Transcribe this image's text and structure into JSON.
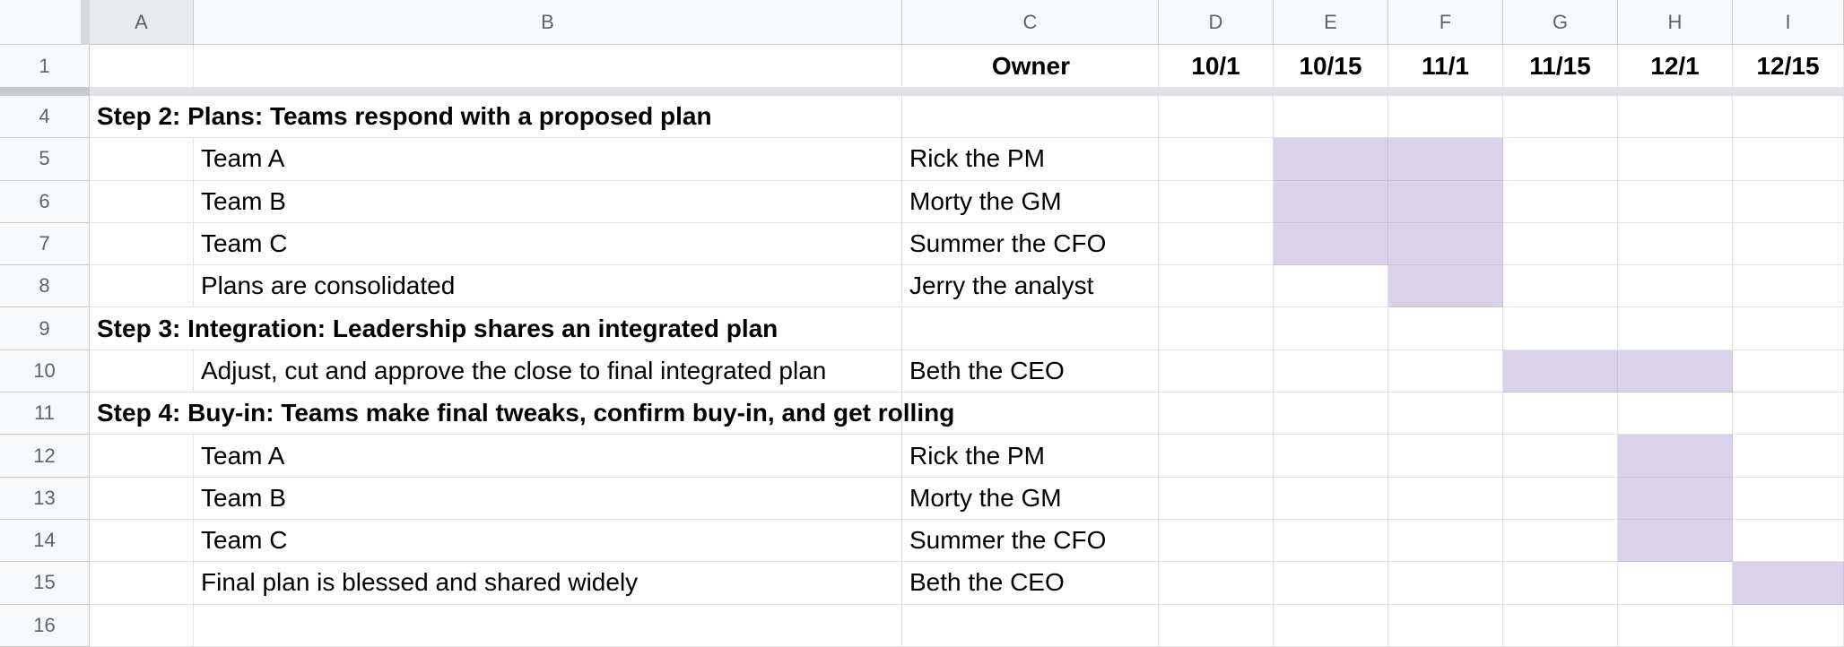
{
  "columns": [
    "A",
    "B",
    "C",
    "D",
    "E",
    "F",
    "G",
    "H",
    "I"
  ],
  "header_row": {
    "number": "1",
    "cells": [
      "",
      "",
      "Owner",
      "10/1",
      "10/15",
      "11/1",
      "11/15",
      "12/1",
      "12/15"
    ]
  },
  "rows": [
    {
      "number": "4",
      "cells": [
        "Step 2: Plans: Teams respond with a proposed plan",
        "",
        "",
        "",
        "",
        "",
        "",
        "",
        ""
      ],
      "heading": true,
      "filled": []
    },
    {
      "number": "5",
      "cells": [
        "",
        "Team A",
        "Rick the PM",
        "",
        "",
        "",
        "",
        "",
        ""
      ],
      "heading": false,
      "filled": [
        "E",
        "F"
      ]
    },
    {
      "number": "6",
      "cells": [
        "",
        "Team B",
        "Morty the GM",
        "",
        "",
        "",
        "",
        "",
        ""
      ],
      "heading": false,
      "filled": [
        "E",
        "F"
      ]
    },
    {
      "number": "7",
      "cells": [
        "",
        "Team C",
        "Summer the CFO",
        "",
        "",
        "",
        "",
        "",
        ""
      ],
      "heading": false,
      "filled": [
        "E",
        "F"
      ]
    },
    {
      "number": "8",
      "cells": [
        "",
        "Plans are consolidated",
        "Jerry the analyst",
        "",
        "",
        "",
        "",
        "",
        ""
      ],
      "heading": false,
      "filled": [
        "F"
      ]
    },
    {
      "number": "9",
      "cells": [
        "Step 3: Integration: Leadership shares an integrated plan",
        "",
        "",
        "",
        "",
        "",
        "",
        "",
        ""
      ],
      "heading": true,
      "filled": []
    },
    {
      "number": "10",
      "cells": [
        "",
        "Adjust, cut and approve the close to final integrated plan",
        "Beth the CEO",
        "",
        "",
        "",
        "",
        "",
        ""
      ],
      "heading": false,
      "filled": [
        "G",
        "H"
      ]
    },
    {
      "number": "11",
      "cells": [
        "Step 4: Buy-in: Teams make final tweaks, confirm buy-in, and get rolling",
        "",
        "",
        "",
        "",
        "",
        "",
        "",
        ""
      ],
      "heading": true,
      "filled": []
    },
    {
      "number": "12",
      "cells": [
        "",
        "Team A",
        "Rick the PM",
        "",
        "",
        "",
        "",
        "",
        ""
      ],
      "heading": false,
      "filled": [
        "H"
      ]
    },
    {
      "number": "13",
      "cells": [
        "",
        "Team B",
        "Morty the GM",
        "",
        "",
        "",
        "",
        "",
        ""
      ],
      "heading": false,
      "filled": [
        "H"
      ]
    },
    {
      "number": "14",
      "cells": [
        "",
        "Team C",
        "Summer the CFO",
        "",
        "",
        "",
        "",
        "",
        ""
      ],
      "heading": false,
      "filled": [
        "H"
      ]
    },
    {
      "number": "15",
      "cells": [
        "",
        "Final plan is blessed and shared widely",
        "Beth the CEO",
        "",
        "",
        "",
        "",
        "",
        ""
      ],
      "heading": false,
      "filled": [
        "I"
      ]
    },
    {
      "number": "16",
      "cells": [
        "",
        "",
        "",
        "",
        "",
        "",
        "",
        "",
        ""
      ],
      "heading": false,
      "filled": []
    }
  ],
  "colors": {
    "gantt_fill": "#d9d2e9",
    "header_bg": "#f8f9fa",
    "gridline": "#e2e3e3"
  }
}
